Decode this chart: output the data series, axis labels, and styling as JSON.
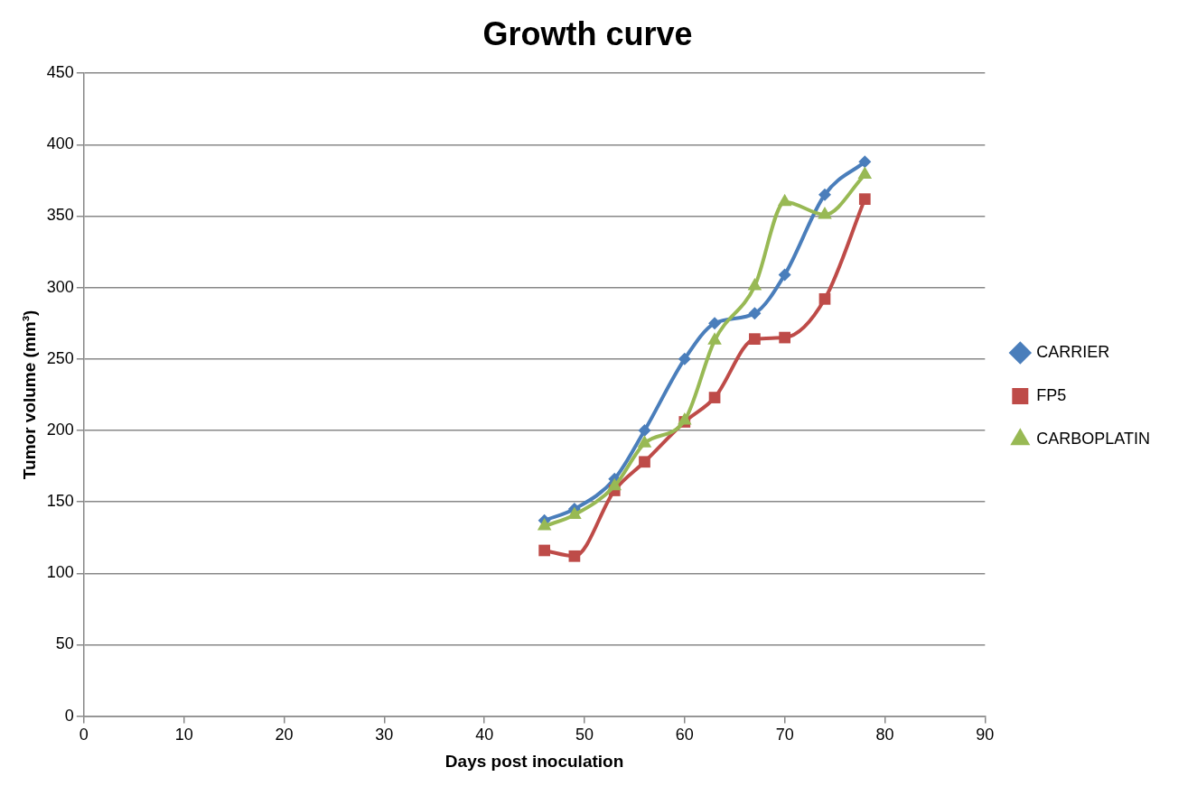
{
  "chart_data": {
    "type": "line",
    "title": "Growth curve",
    "xlabel": "Days post inoculation",
    "ylabel": "Tumor volume (mm³)",
    "x": [
      46,
      49,
      53,
      56,
      60,
      63,
      67,
      70,
      74,
      78
    ],
    "series": [
      {
        "name": "CARRIER",
        "color": "#4a7ebb",
        "marker": "diamond",
        "values": [
          137,
          145,
          166,
          200,
          250,
          275,
          282,
          309,
          365,
          388
        ]
      },
      {
        "name": "FP5",
        "color": "#be4b48",
        "marker": "square",
        "values": [
          116,
          112,
          158,
          178,
          206,
          223,
          264,
          265,
          292,
          362
        ]
      },
      {
        "name": "CARBOPLATIN",
        "color": "#98b954",
        "marker": "triangle",
        "values": [
          133,
          141,
          161,
          191,
          207,
          263,
          301,
          360,
          351,
          379
        ]
      }
    ],
    "xlim": [
      0,
      90
    ],
    "xticks": [
      0,
      10,
      20,
      30,
      40,
      50,
      60,
      70,
      80,
      90
    ],
    "ylim": [
      0,
      450
    ],
    "yticks": [
      0,
      50,
      100,
      150,
      200,
      250,
      300,
      350,
      400,
      450
    ],
    "grid": "y",
    "legend": "right",
    "line_style": "solid"
  }
}
